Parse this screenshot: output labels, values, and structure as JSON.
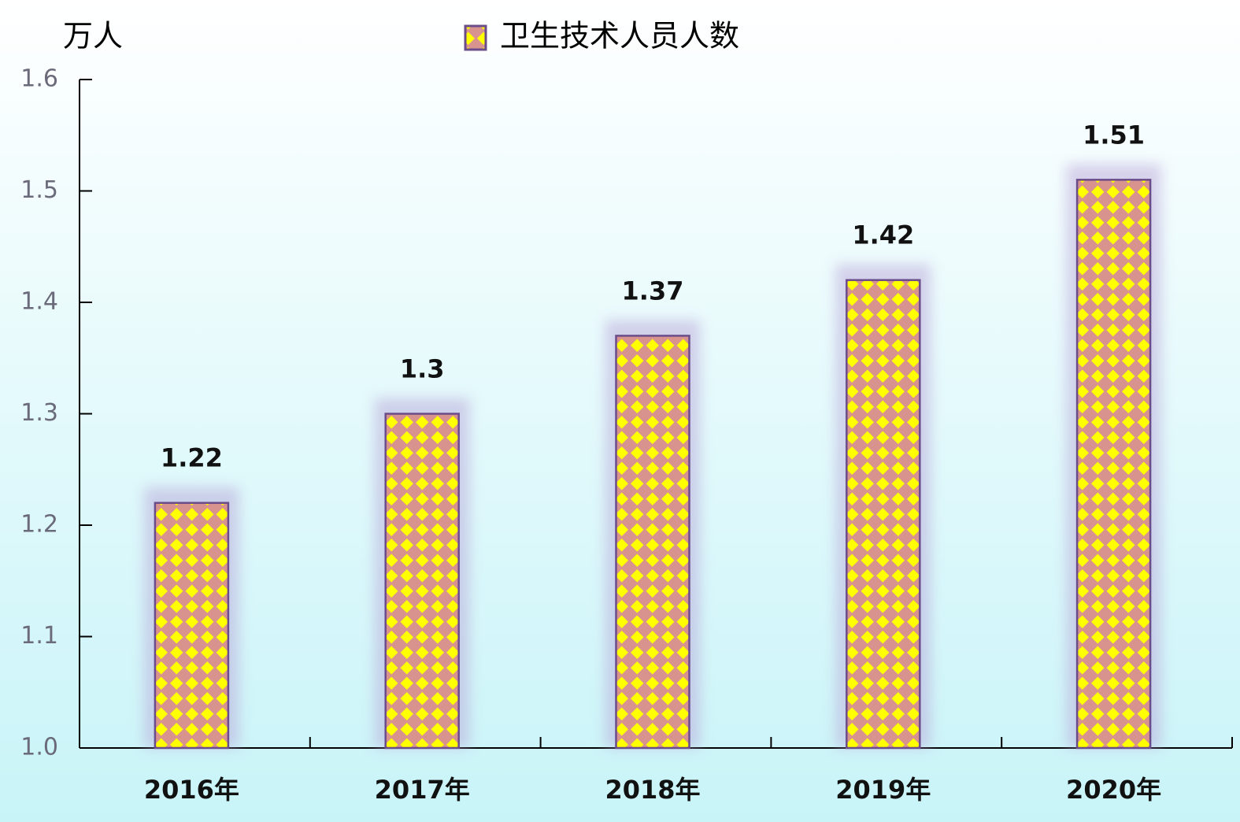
{
  "chart_data": {
    "type": "bar",
    "y_label": "万人",
    "categories": [
      "2016年",
      "2017年",
      "2018年",
      "2019年",
      "2020年"
    ],
    "series": [
      {
        "name": "卫生技术人员人数",
        "color": "#d9938f",
        "values": [
          1.22,
          1.3,
          1.37,
          1.42,
          1.51
        ]
      }
    ],
    "ylim": [
      1,
      1.6
    ],
    "yticks": [
      {
        "value": 1,
        "label": "1.0"
      },
      1.1,
      1.2,
      1.3,
      1.4,
      1.5,
      1.6
    ],
    "legend": "top"
  }
}
